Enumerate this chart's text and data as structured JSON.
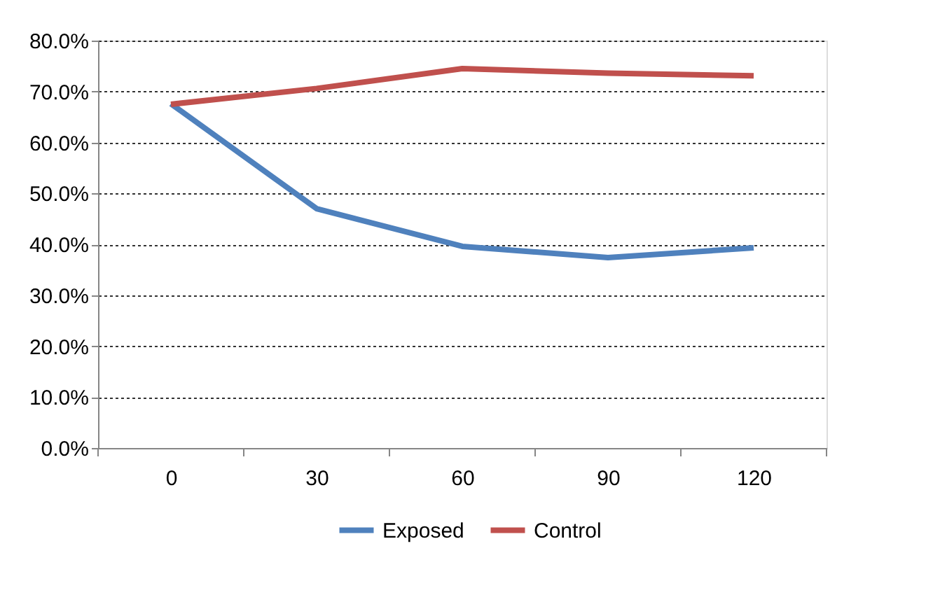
{
  "chart_data": {
    "type": "line",
    "categories": [
      "0",
      "30",
      "60",
      "90",
      "120"
    ],
    "series": [
      {
        "name": "Exposed",
        "color": "#4f81bd",
        "values": [
          67.6,
          47.0,
          39.6,
          37.4,
          39.3
        ]
      },
      {
        "name": "Control",
        "color": "#c0504d",
        "values": [
          67.5,
          70.6,
          74.5,
          73.6,
          73.1
        ]
      }
    ],
    "ylim": [
      0,
      80
    ],
    "yticks": [
      {
        "value": 0,
        "label": "0.0%"
      },
      {
        "value": 10,
        "label": "10.0%"
      },
      {
        "value": 20,
        "label": "20.0%"
      },
      {
        "value": 30,
        "label": "30.0%"
      },
      {
        "value": 40,
        "label": "40.0%"
      },
      {
        "value": 50,
        "label": "50.0%"
      },
      {
        "value": 60,
        "label": "60.0%"
      },
      {
        "value": 70,
        "label": "70.0%"
      },
      {
        "value": 80,
        "label": "80.0%"
      }
    ],
    "grid": "y",
    "legend": "bottom",
    "marker": "none",
    "line_style": "solid"
  }
}
